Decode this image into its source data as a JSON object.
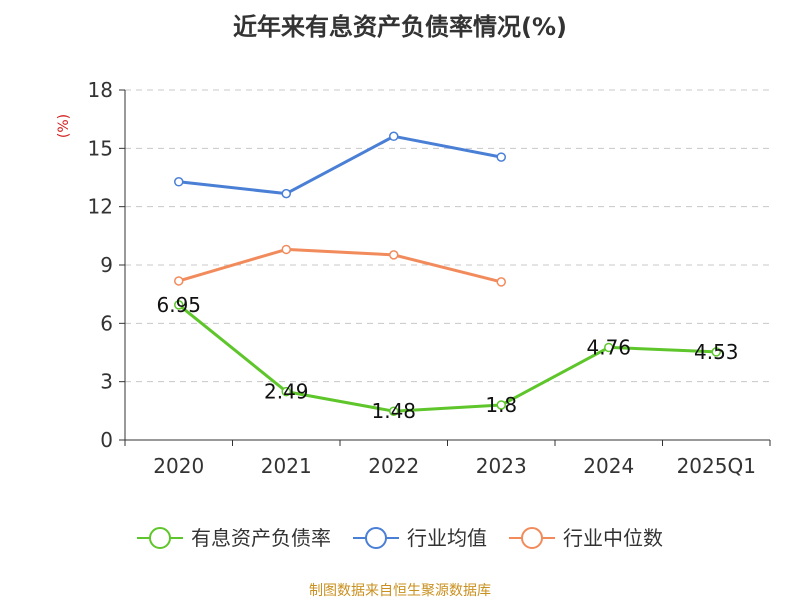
{
  "chart_data": {
    "type": "line",
    "title": "近年来有息资产负债率情况(%)",
    "ylabel": "(%)",
    "xlabel": "",
    "categories": [
      "2020",
      "2021",
      "2022",
      "2023",
      "2024",
      "2025Q1"
    ],
    "ylim": [
      0,
      18
    ],
    "yticks": [
      0,
      3,
      6,
      9,
      12,
      15,
      18
    ],
    "grid": true,
    "legend_position": "bottom",
    "series": [
      {
        "name": "有息资产负债率",
        "color": "#5ec62b",
        "values": [
          6.95,
          2.49,
          1.48,
          1.8,
          4.76,
          4.53
        ],
        "labels": [
          "6.95",
          "2.49",
          "1.48",
          "1.8",
          "4.76",
          "4.53"
        ]
      },
      {
        "name": "行业均值",
        "color": "#4a7fd6",
        "values": [
          13.28,
          12.67,
          15.62,
          14.55,
          null,
          null
        ]
      },
      {
        "name": "行业中位数",
        "color": "#f28b5c",
        "values": [
          8.18,
          9.8,
          9.52,
          8.13,
          null,
          null
        ]
      }
    ],
    "source": "制图数据来自恒生聚源数据库"
  }
}
